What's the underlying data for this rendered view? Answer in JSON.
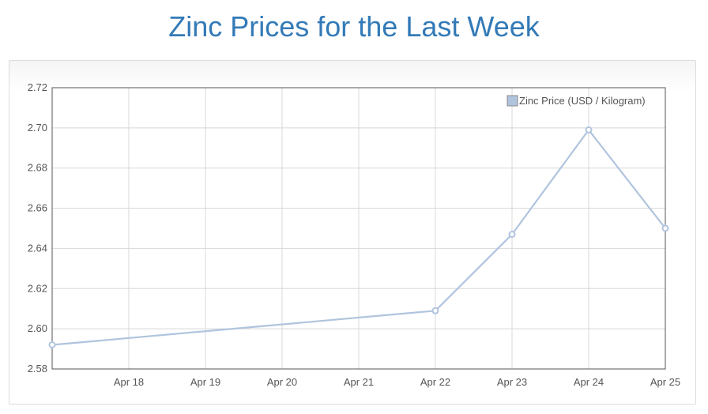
{
  "page": {
    "title": "Zinc Prices for the Last Week"
  },
  "chart_data": {
    "type": "line",
    "title": "",
    "xlabel": "",
    "ylabel": "",
    "x": [
      "Apr 17",
      "Apr 22",
      "Apr 23",
      "Apr 24",
      "Apr 25"
    ],
    "x_ticks": [
      "Apr 18",
      "Apr 19",
      "Apr 20",
      "Apr 21",
      "Apr 22",
      "Apr 23",
      "Apr 24",
      "Apr 25"
    ],
    "x_range": [
      "Apr 17",
      "Apr 25"
    ],
    "series": [
      {
        "name": "Zinc Price (USD / Kilogram)",
        "values": [
          2.592,
          2.609,
          2.647,
          2.699,
          2.65
        ],
        "color": "#b0c4de"
      }
    ],
    "ylim": [
      2.58,
      2.72
    ],
    "y_ticks": [
      "2.58",
      "2.60",
      "2.62",
      "2.64",
      "2.66",
      "2.68",
      "2.70",
      "2.72"
    ],
    "grid": true,
    "legend": "top-right"
  }
}
